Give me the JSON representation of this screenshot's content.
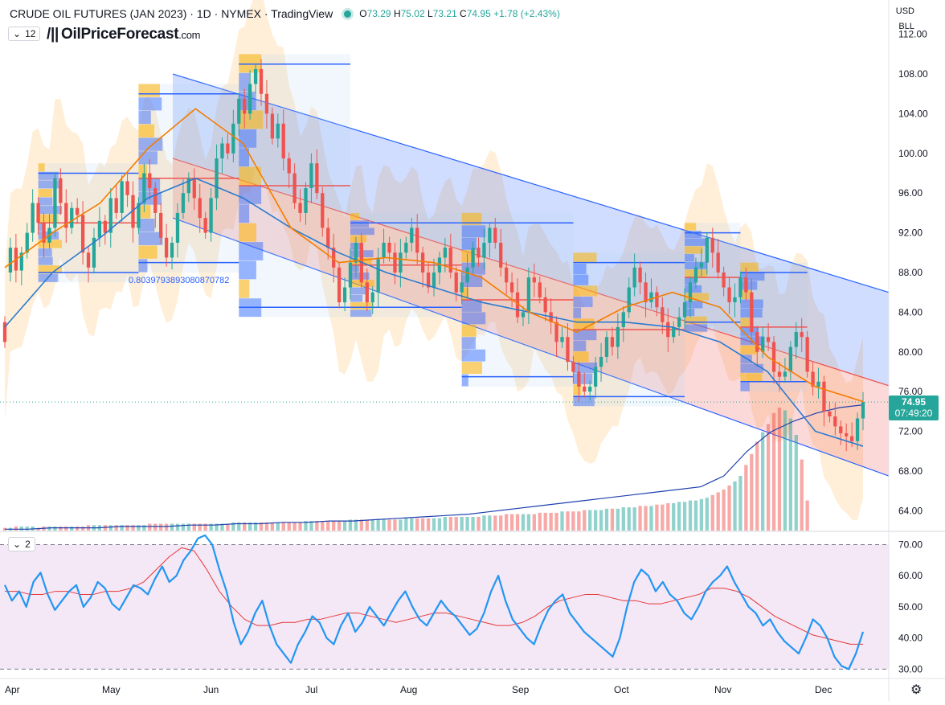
{
  "header": {
    "title": "CRUDE OIL FUTURES (JAN 2023) · 1D · NYMEX · TradingView",
    "ohlc": {
      "o_label": "O",
      "o": "73.29",
      "h_label": "H",
      "h": "75.02",
      "l_label": "L",
      "l": "73.21",
      "c_label": "C",
      "c": "74.95",
      "chg": "+1.78 (+2.43%)"
    },
    "currency": "USD",
    "unit": "BLL",
    "indicator_count": "12",
    "logo_text": "OilPriceForecast",
    "logo_domain": ".com",
    "fib_label": "0.8039793893080870782"
  },
  "last_price": {
    "price": "74.95",
    "countdown": "07:49:20"
  },
  "rsi_pane": {
    "indicator_count": "2",
    "ticks": [
      "70.00",
      "60.00",
      "50.00",
      "40.00",
      "30.00"
    ]
  },
  "colors": {
    "up": "#26a69a",
    "down": "#ef5350",
    "ema_fast": "#f57c00",
    "ema_slow": "#2a7bd1",
    "channel": "#2962ff",
    "rsi": "#2196f3",
    "rsi_ma": "#e53935"
  },
  "chart_data": [
    {
      "type": "candlestick",
      "title": "CRUDE OIL FUTURES (JAN 2023)",
      "x_ticks": [
        "Apr",
        "May",
        "Jun",
        "Jul",
        "Aug",
        "Sep",
        "Oct",
        "Nov",
        "Dec"
      ],
      "y_ticks": [
        "112.00",
        "108.00",
        "104.00",
        "100.00",
        "96.00",
        "92.00",
        "88.00",
        "84.00",
        "80.00",
        "76.00",
        "72.00",
        "68.00",
        "64.00"
      ],
      "ylim": [
        62,
        114
      ],
      "points": [
        [
          83.0,
          81.0
        ],
        [
          88.0,
          90.5
        ],
        [
          90.5,
          88.2
        ],
        [
          88.2,
          90.0
        ],
        [
          90.0,
          92.0
        ],
        [
          92.0,
          95.0
        ],
        [
          95.0,
          93.0
        ],
        [
          93.0,
          91.0
        ],
        [
          91.0,
          92.5
        ],
        [
          92.5,
          97.5
        ],
        [
          97.5,
          95.0
        ],
        [
          95.0,
          92.5
        ],
        [
          92.5,
          94.5
        ],
        [
          94.5,
          93.8
        ],
        [
          93.8,
          90.0
        ],
        [
          90.0,
          88.5
        ],
        [
          88.5,
          91.5
        ],
        [
          91.5,
          93.2
        ],
        [
          93.2,
          92.0
        ],
        [
          92.0,
          95.5
        ],
        [
          95.5,
          94.0
        ],
        [
          94.0,
          97.2
        ],
        [
          97.2,
          95.8
        ],
        [
          95.8,
          92.5
        ],
        [
          92.5,
          95.0
        ],
        [
          95.0,
          98.0
        ],
        [
          98.0,
          96.5
        ],
        [
          96.5,
          94.0
        ],
        [
          94.0,
          91.5
        ],
        [
          91.5,
          89.5
        ],
        [
          89.5,
          91.0
        ],
        [
          91.0,
          94.0
        ],
        [
          94.0,
          96.0
        ],
        [
          96.0,
          97.5
        ],
        [
          97.5,
          95.5
        ],
        [
          95.5,
          93.5
        ],
        [
          93.5,
          92.0
        ],
        [
          92.0,
          95.5
        ],
        [
          95.5,
          99.5
        ],
        [
          99.5,
          101.0
        ],
        [
          101.0,
          100.0
        ],
        [
          100.0,
          103.0
        ],
        [
          103.0,
          105.5
        ],
        [
          105.5,
          104.0
        ],
        [
          104.0,
          107.0
        ],
        [
          107.0,
          108.5
        ],
        [
          108.5,
          106.0
        ],
        [
          106.0,
          104.0
        ],
        [
          104.0,
          101.5
        ],
        [
          101.5,
          103.0
        ],
        [
          103.0,
          99.5
        ],
        [
          99.5,
          98.0
        ],
        [
          98.0,
          95.0
        ],
        [
          95.0,
          94.0
        ],
        [
          94.0,
          96.5
        ],
        [
          96.5,
          99.0
        ],
        [
          99.0,
          96.0
        ],
        [
          96.0,
          92.5
        ],
        [
          92.5,
          90.5
        ],
        [
          90.5,
          88.5
        ],
        [
          88.5,
          85.0
        ],
        [
          85.0,
          86.5
        ],
        [
          86.5,
          89.0
        ],
        [
          89.0,
          91.0
        ],
        [
          91.0,
          87.0
        ],
        [
          87.0,
          85.0
        ],
        [
          85.0,
          86.0
        ],
        [
          86.0,
          89.5
        ],
        [
          89.5,
          91.0
        ],
        [
          91.0,
          90.0
        ],
        [
          90.0,
          88.0
        ],
        [
          88.0,
          90.0
        ],
        [
          90.0,
          91.0
        ],
        [
          91.0,
          92.5
        ],
        [
          92.5,
          90.0
        ],
        [
          90.0,
          88.0
        ],
        [
          88.0,
          86.5
        ],
        [
          86.5,
          88.0
        ],
        [
          88.0,
          89.5
        ],
        [
          89.5,
          90.5
        ],
        [
          90.5,
          88.0
        ],
        [
          88.0,
          86.0
        ],
        [
          86.0,
          87.0
        ],
        [
          87.0,
          88.5
        ],
        [
          88.5,
          90.5
        ],
        [
          90.5,
          89.5
        ],
        [
          89.5,
          91.0
        ],
        [
          91.0,
          92.5
        ],
        [
          92.5,
          91.0
        ],
        [
          91.0,
          88.5
        ],
        [
          88.5,
          87.0
        ],
        [
          87.0,
          86.0
        ],
        [
          86.0,
          83.5
        ],
        [
          83.5,
          84.0
        ],
        [
          84.0,
          87.5
        ],
        [
          87.5,
          87.0
        ],
        [
          87.0,
          85.5
        ],
        [
          85.5,
          84.0
        ],
        [
          84.0,
          83.0
        ],
        [
          83.0,
          81.0
        ],
        [
          81.0,
          81.5
        ],
        [
          81.5,
          79.0
        ],
        [
          79.0,
          78.0
        ],
        [
          78.0,
          76.5
        ],
        [
          76.5,
          76.0
        ],
        [
          76.0,
          76.5
        ],
        [
          76.5,
          78.5
        ],
        [
          78.5,
          79.5
        ],
        [
          79.5,
          81.5
        ],
        [
          81.5,
          80.5
        ],
        [
          80.5,
          82.5
        ],
        [
          82.5,
          84.0
        ],
        [
          84.0,
          86.5
        ],
        [
          86.5,
          88.5
        ],
        [
          88.5,
          87.0
        ],
        [
          87.0,
          85.0
        ],
        [
          85.0,
          86.0
        ],
        [
          86.0,
          84.5
        ],
        [
          84.5,
          83.0
        ],
        [
          83.0,
          81.5
        ],
        [
          81.5,
          82.5
        ],
        [
          82.5,
          83.5
        ],
        [
          83.5,
          85.0
        ],
        [
          85.0,
          87.0
        ],
        [
          87.0,
          88.5
        ],
        [
          88.5,
          89.0
        ],
        [
          89.0,
          91.5
        ],
        [
          91.5,
          90.0
        ],
        [
          90.0,
          88.0
        ],
        [
          88.0,
          86.5
        ],
        [
          86.5,
          85.0
        ],
        [
          85.0,
          85.5
        ],
        [
          85.5,
          87.5
        ],
        [
          87.5,
          86.0
        ],
        [
          86.0,
          82.0
        ],
        [
          82.0,
          80.0
        ],
        [
          80.0,
          81.5
        ],
        [
          81.5,
          81.0
        ],
        [
          81.0,
          78.0
        ],
        [
          78.0,
          77.5
        ],
        [
          77.5,
          78.0
        ],
        [
          78.0,
          80.5
        ],
        [
          80.5,
          82.0
        ],
        [
          82.0,
          81.5
        ],
        [
          81.5,
          78.0
        ],
        [
          78.0,
          76.5
        ],
        [
          76.5,
          77.0
        ],
        [
          77.0,
          74.0
        ],
        [
          74.0,
          73.5
        ],
        [
          73.5,
          72.5
        ],
        [
          72.5,
          71.8
        ],
        [
          71.8,
          71.5
        ],
        [
          71.5,
          71.0
        ],
        [
          71.0,
          73.3
        ],
        [
          73.3,
          74.95
        ]
      ],
      "volume": [
        2,
        2,
        3,
        3,
        3,
        3,
        2,
        3,
        3,
        3,
        3,
        3,
        3,
        3,
        3,
        4,
        4,
        4,
        4,
        4,
        4,
        4,
        4,
        4,
        4,
        4,
        5,
        5,
        5,
        5,
        5,
        5,
        5,
        5,
        5,
        5,
        5,
        5,
        5,
        5,
        5,
        6,
        6,
        6,
        6,
        6,
        6,
        6,
        6,
        6,
        6,
        6,
        6,
        6,
        7,
        7,
        7,
        7,
        7,
        7,
        7,
        7,
        8,
        8,
        8,
        8,
        8,
        8,
        8,
        8,
        8,
        8,
        9,
        9,
        9,
        9,
        9,
        9,
        9,
        10,
        10,
        10,
        10,
        10,
        10,
        10,
        11,
        11,
        11,
        11,
        12,
        12,
        12,
        12,
        12,
        12,
        13,
        13,
        13,
        13,
        14,
        14,
        14,
        14,
        15,
        15,
        15,
        15,
        16,
        16,
        16,
        17,
        17,
        17,
        18,
        18,
        18,
        19,
        19,
        20,
        20,
        21,
        21,
        22,
        22,
        23,
        24,
        26,
        28,
        30,
        33,
        36,
        40,
        48,
        56,
        65,
        72,
        78,
        86,
        90,
        88,
        82,
        70,
        52,
        22
      ],
      "ema_fast": {
        "name": "",
        "values": [
          88.5,
          92.0,
          95.0,
          100.5,
          104.5,
          101.0,
          92.5,
          89.0,
          89.5,
          89.0,
          87.5,
          84.0,
          82.0,
          84.5,
          86.0,
          84.5,
          79.5,
          76.5,
          75.0
        ]
      },
      "ema_slow": {
        "name": "",
        "values": [
          82.5,
          88.0,
          91.5,
          95.5,
          97.5,
          95.5,
          92.5,
          90.0,
          88.0,
          86.5,
          85.0,
          84.0,
          83.0,
          83.0,
          82.5,
          81.0,
          78.0,
          72.0,
          70.5
        ]
      },
      "volume_ma": [
        1,
        1,
        2,
        2,
        2,
        3,
        3,
        3,
        4,
        4,
        5,
        5,
        6,
        6,
        7,
        7,
        8,
        9,
        10,
        11,
        12,
        14,
        16,
        18,
        20,
        22,
        24,
        26,
        28,
        30,
        32,
        40,
        58,
        72,
        80,
        86,
        90,
        92
      ]
    },
    {
      "type": "line",
      "title": "RSI",
      "y_ticks": [
        "70.00",
        "60.00",
        "50.00",
        "40.00",
        "30.00"
      ],
      "ylim": [
        27,
        74
      ],
      "series": [
        {
          "name": "",
          "values": [
            57,
            52,
            55,
            50,
            58,
            61,
            54,
            49,
            52,
            55,
            57,
            50,
            53,
            58,
            56,
            51,
            49,
            53,
            57,
            56,
            54,
            59,
            63,
            58,
            60,
            65,
            68,
            72,
            73,
            70,
            62,
            55,
            45,
            38,
            42,
            48,
            52,
            44,
            38,
            35,
            32,
            38,
            42,
            47,
            45,
            40,
            38,
            44,
            48,
            42,
            45,
            50,
            47,
            44,
            48,
            52,
            55,
            50,
            46,
            44,
            48,
            52,
            49,
            47,
            44,
            41,
            43,
            48,
            55,
            60,
            52,
            46,
            43,
            40,
            38,
            44,
            49,
            52,
            54,
            48,
            45,
            42,
            40,
            38,
            36,
            34,
            40,
            50,
            58,
            62,
            60,
            55,
            58,
            54,
            52,
            48,
            46,
            50,
            55,
            58,
            60,
            63,
            58,
            54,
            50,
            48,
            44,
            46,
            42,
            39,
            37,
            35,
            40,
            46,
            44,
            40,
            34,
            31,
            30,
            35,
            42
          ]
        },
        {
          "name": "",
          "values": [
            55,
            55,
            54,
            54,
            55,
            55,
            54,
            54,
            55,
            55,
            56,
            58,
            62,
            66,
            69,
            68,
            62,
            55,
            50,
            46,
            44,
            44,
            45,
            45,
            46,
            46,
            47,
            48,
            48,
            47,
            46,
            45,
            46,
            47,
            48,
            48,
            47,
            46,
            45,
            44,
            44,
            45,
            47,
            50,
            52,
            53,
            54,
            54,
            53,
            52,
            52,
            51,
            51,
            52,
            53,
            54,
            56,
            56,
            55,
            53,
            50,
            47,
            45,
            43,
            41,
            40,
            39,
            38,
            38
          ]
        }
      ],
      "overbought": 70,
      "oversold": 30
    }
  ]
}
